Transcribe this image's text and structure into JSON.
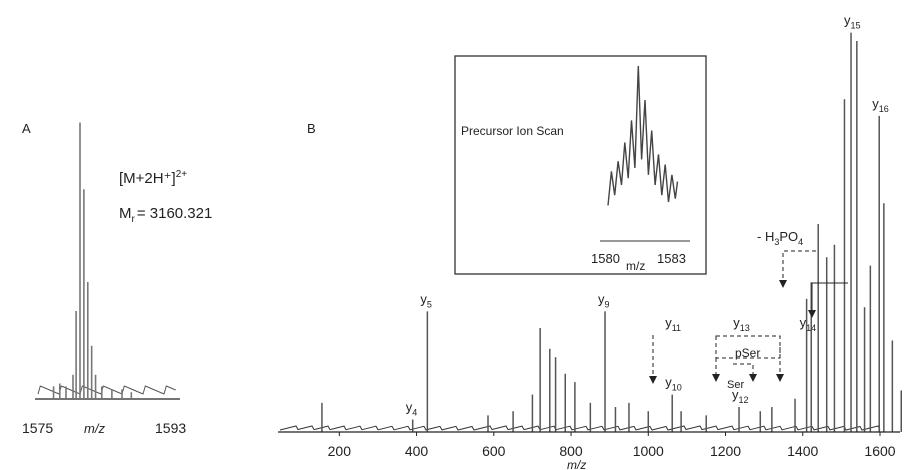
{
  "panel_a": {
    "label": "A",
    "ion": "[M+2H⁺]",
    "ion_charge": "2+",
    "mass_prefix": "M",
    "mass_sub": "r",
    "mass_value": "= 3160.321",
    "x_start": "1575",
    "x_end": "1593",
    "x_unit": "m/z"
  },
  "panel_b": {
    "label": "B",
    "x_unit": "m/z",
    "inset": {
      "title": "Precursor Ion Scan",
      "x_start": "1580",
      "x_end": "1583",
      "x_unit": "m/z"
    },
    "annotations": {
      "loss": "- H",
      "loss_sub1": "3",
      "loss_mid": "PO",
      "loss_sub2": "4",
      "pser": "pSer",
      "ser": "Ser"
    }
  },
  "chart_data": [
    {
      "type": "line",
      "panel": "A",
      "xlim": [
        1575,
        1593
      ],
      "x_ticks": [
        1575,
        1593
      ],
      "xlabel": "m/z",
      "peaks": [
        {
          "x": 1577.0,
          "y": 0.04
        },
        {
          "x": 1577.8,
          "y": 0.05
        },
        {
          "x": 1578.6,
          "y": 0.04
        },
        {
          "x": 1579.5,
          "y": 0.08
        },
        {
          "x": 1579.9,
          "y": 0.3
        },
        {
          "x": 1580.4,
          "y": 0.95
        },
        {
          "x": 1580.9,
          "y": 0.72
        },
        {
          "x": 1581.4,
          "y": 0.4
        },
        {
          "x": 1581.9,
          "y": 0.18
        },
        {
          "x": 1582.4,
          "y": 0.08
        },
        {
          "x": 1583.2,
          "y": 0.04
        },
        {
          "x": 1584.5,
          "y": 0.03
        },
        {
          "x": 1585.8,
          "y": 0.03
        },
        {
          "x": 1587.0,
          "y": 0.02
        }
      ]
    },
    {
      "type": "bar",
      "panel": "B",
      "xlim": [
        0,
        1750
      ],
      "x_ticks": [
        200,
        400,
        600,
        800,
        1000,
        1200,
        1400,
        1600
      ],
      "xlabel": "m/z",
      "peaks": [
        {
          "x": 155,
          "y": 0.07
        },
        {
          "x": 390,
          "y": 0.03,
          "label": "y",
          "sub": "4"
        },
        {
          "x": 428,
          "y": 0.29,
          "label": "y",
          "sub": "5"
        },
        {
          "x": 585,
          "y": 0.04
        },
        {
          "x": 650,
          "y": 0.05
        },
        {
          "x": 700,
          "y": 0.09
        },
        {
          "x": 720,
          "y": 0.25
        },
        {
          "x": 745,
          "y": 0.2
        },
        {
          "x": 760,
          "y": 0.18
        },
        {
          "x": 785,
          "y": 0.14
        },
        {
          "x": 810,
          "y": 0.12
        },
        {
          "x": 850,
          "y": 0.07
        },
        {
          "x": 888,
          "y": 0.29,
          "label": "y",
          "sub": "9"
        },
        {
          "x": 915,
          "y": 0.06
        },
        {
          "x": 950,
          "y": 0.07
        },
        {
          "x": 1000,
          "y": 0.05
        },
        {
          "x": 1062,
          "y": 0.09,
          "label": "y",
          "sub": "10"
        },
        {
          "x": 1085,
          "y": 0.05
        },
        {
          "x": 1150,
          "y": 0.04
        },
        {
          "x": 1235,
          "y": 0.06,
          "label": "y",
          "sub": "12"
        },
        {
          "x": 1290,
          "y": 0.05
        },
        {
          "x": 1320,
          "y": 0.06
        },
        {
          "x": 1380,
          "y": 0.08
        },
        {
          "x": 1410,
          "y": 0.32
        },
        {
          "x": 1422,
          "y": 0.36
        },
        {
          "x": 1440,
          "y": 0.5
        },
        {
          "x": 1462,
          "y": 0.42
        },
        {
          "x": 1482,
          "y": 0.45
        },
        {
          "x": 1508,
          "y": 0.8
        },
        {
          "x": 1525,
          "y": 0.96,
          "label": "y",
          "sub": "15"
        },
        {
          "x": 1540,
          "y": 0.94
        },
        {
          "x": 1560,
          "y": 0.3
        },
        {
          "x": 1575,
          "y": 0.4
        },
        {
          "x": 1598,
          "y": 0.76,
          "label": "y",
          "sub": "16"
        },
        {
          "x": 1610,
          "y": 0.55
        },
        {
          "x": 1632,
          "y": 0.22
        },
        {
          "x": 1655,
          "y": 0.1
        },
        {
          "x": 1690,
          "y": 0.05
        }
      ],
      "ion_labels": [
        {
          "label": "y",
          "sub": "11",
          "x": 1062
        },
        {
          "label": "y",
          "sub": "13",
          "x": 1238
        },
        {
          "label": "y",
          "sub": "14",
          "x": 1410
        }
      ]
    },
    {
      "type": "line",
      "panel": "B-inset",
      "xlim": [
        1579.8,
        1583.4
      ],
      "x_ticks": [
        1580,
        1583
      ],
      "xlabel": "m/z",
      "points": [
        [
          1580.0,
          0.18
        ],
        [
          1580.15,
          0.38
        ],
        [
          1580.3,
          0.24
        ],
        [
          1580.45,
          0.44
        ],
        [
          1580.6,
          0.3
        ],
        [
          1580.75,
          0.55
        ],
        [
          1580.9,
          0.34
        ],
        [
          1581.05,
          0.68
        ],
        [
          1581.2,
          0.4
        ],
        [
          1581.35,
          1.0
        ],
        [
          1581.5,
          0.45
        ],
        [
          1581.65,
          0.8
        ],
        [
          1581.8,
          0.36
        ],
        [
          1581.95,
          0.62
        ],
        [
          1582.1,
          0.3
        ],
        [
          1582.25,
          0.48
        ],
        [
          1582.4,
          0.24
        ],
        [
          1582.55,
          0.42
        ],
        [
          1582.7,
          0.2
        ],
        [
          1582.85,
          0.36
        ],
        [
          1583.0,
          0.22
        ],
        [
          1583.1,
          0.32
        ]
      ]
    }
  ]
}
